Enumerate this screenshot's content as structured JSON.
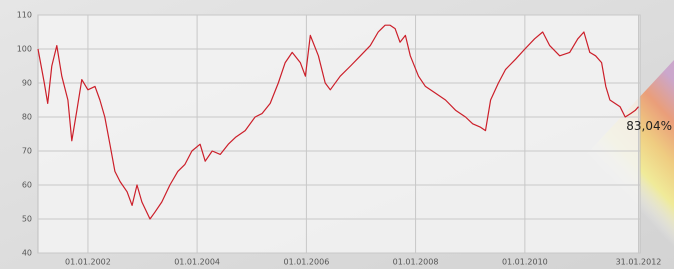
{
  "chart_data": {
    "type": "line",
    "x": [
      "2001-02-01",
      "2001-03-15",
      "2001-04-07",
      "2001-05-04",
      "2001-06-07",
      "2001-07-10",
      "2001-08-20",
      "2001-09-15",
      "2001-10-19",
      "2001-11-21",
      "2002-01-01",
      "2002-02-17",
      "2002-03-22",
      "2002-04-24",
      "2002-05-28",
      "2002-06-30",
      "2002-08-04",
      "2002-09-20",
      "2002-10-23",
      "2002-11-25",
      "2002-12-28",
      "2003-02-20",
      "2003-03-25",
      "2003-05-10",
      "2003-07-03",
      "2003-08-25",
      "2003-10-11",
      "2003-11-27",
      "2004-01-21",
      "2004-02-24",
      "2004-04-11",
      "2004-06-04",
      "2004-07-28",
      "2004-09-13",
      "2004-11-18",
      "2005-01-23",
      "2005-03-10",
      "2005-05-04",
      "2005-06-27",
      "2005-08-12",
      "2005-09-28",
      "2005-11-21",
      "2005-12-25",
      "2006-01-27",
      "2006-03-22",
      "2006-05-07",
      "2006-06-10",
      "2006-08-15",
      "2006-10-23",
      "2006-12-28",
      "2007-03-04",
      "2007-04-26",
      "2007-06-11",
      "2007-07-15",
      "2007-08-17",
      "2007-09-19",
      "2007-10-25",
      "2007-11-27",
      "2008-01-21",
      "2008-03-07",
      "2008-05-14",
      "2008-07-19",
      "2008-09-24",
      "2008-11-30",
      "2009-01-17",
      "2009-03-10",
      "2009-04-13",
      "2009-05-17",
      "2009-07-08",
      "2009-08-25",
      "2009-10-31",
      "2010-01-01",
      "2010-03-07",
      "2010-04-30",
      "2010-06-16",
      "2010-08-22",
      "2010-10-28",
      "2010-12-21",
      "2011-01-31",
      "2011-03-11",
      "2011-04-19",
      "2011-05-29",
      "2011-06-26",
      "2011-07-24",
      "2011-09-30",
      "2011-11-03",
      "2011-12-09",
      "2012-01-10",
      "2012-01-31"
    ],
    "series": [
      {
        "color": "#cc1f2a",
        "values": [
          100,
          90,
          84,
          95,
          101,
          92,
          85,
          73,
          82,
          91,
          88,
          89,
          85,
          80,
          72,
          64,
          61,
          58,
          54,
          60,
          55,
          50,
          52,
          55,
          60,
          64,
          66,
          70,
          72,
          67,
          70,
          69,
          72,
          74,
          76,
          80,
          81,
          84,
          90,
          96,
          99,
          96,
          92,
          104,
          98,
          90,
          88,
          92,
          95,
          98,
          101,
          105,
          107,
          107,
          106,
          102,
          104,
          98,
          92,
          89,
          87,
          85,
          82,
          80,
          78,
          77,
          76,
          85,
          90,
          94,
          97,
          100,
          103,
          105,
          101,
          98,
          99,
          103,
          105,
          99,
          98,
          96,
          89,
          85,
          83,
          80,
          81,
          82,
          83.04
        ],
        "value_labels": [
          null,
          null,
          null,
          null,
          null,
          null,
          null,
          null,
          null,
          null,
          null,
          null,
          null,
          null,
          null,
          null,
          null,
          null,
          null,
          null,
          null,
          null,
          null,
          null,
          null,
          null,
          null,
          null,
          null,
          null,
          null,
          null,
          null,
          null,
          null,
          null,
          null,
          null,
          null,
          null,
          null,
          null,
          null,
          null,
          null,
          null,
          null,
          null,
          null,
          null,
          null,
          null,
          null,
          null,
          null,
          null,
          null,
          null,
          null,
          null,
          null,
          null,
          null,
          null,
          null,
          null,
          null,
          null,
          null,
          null,
          null,
          null,
          null,
          null,
          null,
          null,
          null,
          null,
          null,
          null,
          null,
          null,
          null,
          null,
          null,
          null,
          null,
          null,
          "83,04%"
        ]
      }
    ],
    "xlim": [
      "2001-02-01",
      "2012-02-10"
    ],
    "xticks": [
      {
        "value": "2002-01-01",
        "label": "01.01.2002"
      },
      {
        "value": "2004-01-01",
        "label": "01.01.2004"
      },
      {
        "value": "2006-01-01",
        "label": "01.01.2006"
      },
      {
        "value": "2008-01-01",
        "label": "01.01.2008"
      },
      {
        "value": "2010-01-01",
        "label": "01.01.2010"
      },
      {
        "value": "2012-01-31",
        "label": "31.01.2012"
      }
    ],
    "ylim": [
      40,
      110
    ],
    "yticks": [
      40,
      50,
      60,
      70,
      80,
      90,
      100,
      110
    ],
    "grid": true
  }
}
